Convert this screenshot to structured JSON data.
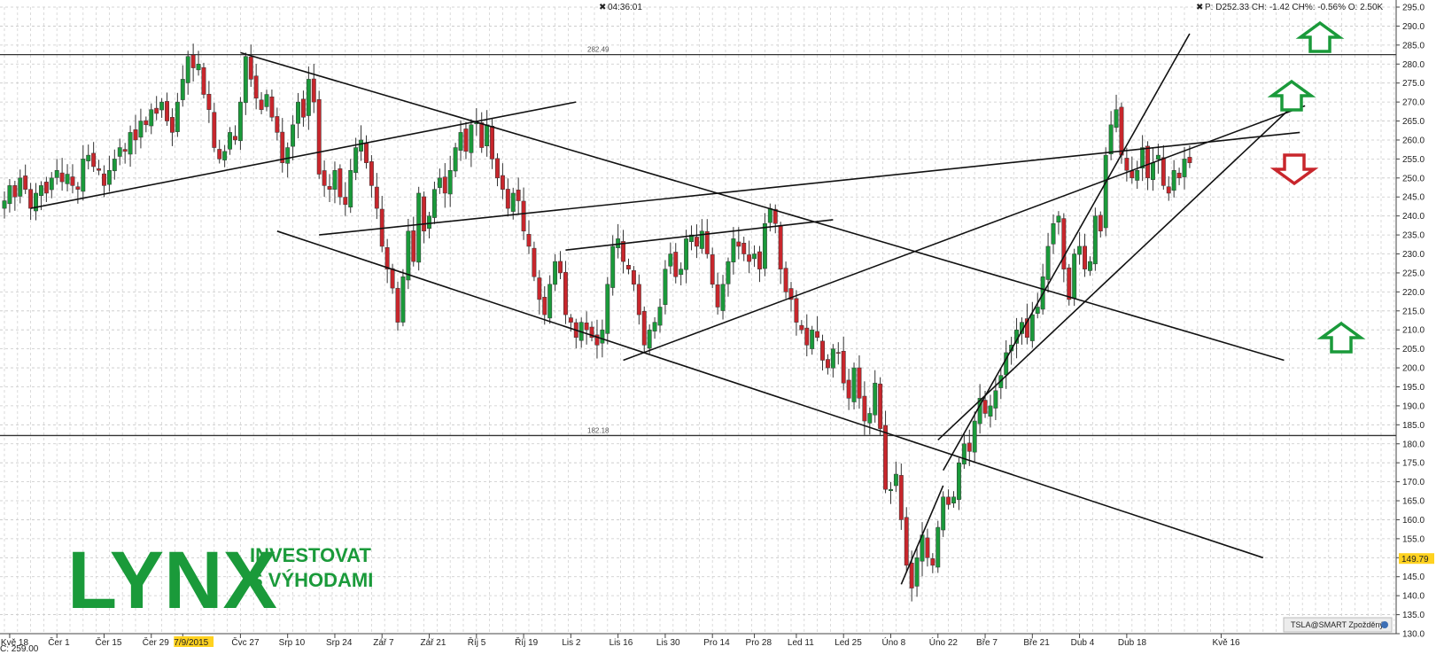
{
  "header": {
    "clock": "04:36:01",
    "quote": "P: D252.33 CH: -1.42 CH%: -0.56% O: 2.50K"
  },
  "footer": {
    "left_label": "C: 259.00",
    "badge": "TSLA@SMART Zpožděný"
  },
  "logo": {
    "name": "LYNX",
    "line1": "INVESTOVAT",
    "line2": "S VÝHODAMI"
  },
  "colors": {
    "up": "#1a9a3a",
    "down": "#c8262c",
    "price_tag": "#ffd21f"
  },
  "chart_data": {
    "type": "candlestick",
    "y_range": [
      130,
      295
    ],
    "y_ticks": [
      130,
      135,
      140,
      145,
      150,
      155,
      160,
      165,
      170,
      175,
      180,
      185,
      190,
      195,
      200,
      205,
      210,
      215,
      220,
      225,
      230,
      235,
      240,
      245,
      250,
      255,
      260,
      265,
      270,
      275,
      280,
      285,
      290,
      295
    ],
    "x_ticks": [
      {
        "label": "Kvě 18",
        "bar": 1
      },
      {
        "label": "Čer 1",
        "bar": 10
      },
      {
        "label": "Čer 15",
        "bar": 19
      },
      {
        "label": "Čer 29",
        "bar": 28
      },
      {
        "label": "7/9/2015",
        "bar": 34,
        "highlight": true
      },
      {
        "label": "Čvc 27",
        "bar": 45
      },
      {
        "label": "Srp 10",
        "bar": 54
      },
      {
        "label": "Srp 24",
        "bar": 63
      },
      {
        "label": "Zář 7",
        "bar": 72
      },
      {
        "label": "Zář 21",
        "bar": 81
      },
      {
        "label": "Říj 5",
        "bar": 90
      },
      {
        "label": "Říj 19",
        "bar": 99
      },
      {
        "label": "Lis 2",
        "bar": 108
      },
      {
        "label": "Lis 16",
        "bar": 117
      },
      {
        "label": "Lis 30",
        "bar": 126
      },
      {
        "label": "Pro 14",
        "bar": 135
      },
      {
        "label": "Pro 28",
        "bar": 143
      },
      {
        "label": "Led 11",
        "bar": 151
      },
      {
        "label": "Led 25",
        "bar": 160
      },
      {
        "label": "Úno 8",
        "bar": 169
      },
      {
        "label": "Úno 22",
        "bar": 178
      },
      {
        "label": "Bře 7",
        "bar": 187
      },
      {
        "label": "Bře 21",
        "bar": 196
      },
      {
        "label": "Dub 4",
        "bar": 205
      },
      {
        "label": "Dub 18",
        "bar": 214
      },
      {
        "label": "Kvě 16",
        "bar": 232
      }
    ],
    "horizontal_levels": [
      {
        "value": 282.49,
        "label": "282.49"
      },
      {
        "value": 182.18,
        "label": "182.18"
      }
    ],
    "last_price_tag": {
      "value": 149.79,
      "label": "149.79"
    },
    "closes": [
      244,
      248,
      245,
      250,
      247,
      242,
      246,
      248,
      246,
      250,
      252,
      249,
      251,
      248,
      247,
      255,
      256,
      253,
      252,
      248,
      252,
      255,
      258,
      257,
      262,
      260,
      265,
      264,
      268,
      267,
      270,
      265,
      262,
      270,
      276,
      282,
      279,
      280,
      272,
      268,
      258,
      255,
      257,
      262,
      260,
      270,
      282,
      276,
      271,
      268,
      272,
      266,
      262,
      254,
      258,
      264,
      270,
      266,
      276,
      270,
      251,
      248,
      247,
      252,
      245,
      243,
      252,
      258,
      260,
      254,
      248,
      242,
      232,
      226,
      221,
      212,
      224,
      236,
      228,
      246,
      236,
      240,
      247,
      250,
      246,
      252,
      258,
      262,
      257,
      264,
      265,
      258,
      264,
      255,
      250,
      247,
      242,
      246,
      244,
      236,
      232,
      224,
      218,
      214,
      222,
      228,
      225,
      214,
      212,
      208,
      212,
      210,
      208,
      206,
      210,
      222,
      232,
      234,
      228,
      226,
      222,
      214,
      206,
      210,
      212,
      216,
      226,
      230,
      224,
      226,
      234,
      235,
      232,
      236,
      230,
      222,
      216,
      222,
      228,
      234,
      232,
      230,
      228,
      230,
      226,
      238,
      242,
      238,
      226,
      220,
      218,
      212,
      210,
      206,
      210,
      208,
      202,
      200,
      205,
      204,
      196,
      192,
      200,
      192,
      186,
      188,
      196,
      184,
      168,
      168,
      172,
      160,
      148,
      142,
      150,
      156,
      150,
      148,
      158,
      166,
      164,
      166,
      175,
      180,
      178,
      186,
      192,
      188,
      190,
      194,
      198,
      204,
      206,
      210,
      212,
      208,
      214,
      216,
      224,
      232,
      238,
      240,
      226,
      218,
      230,
      232,
      226,
      228,
      240,
      236,
      256,
      264,
      268,
      256,
      252,
      250,
      252,
      258,
      250,
      254,
      256,
      248,
      246,
      252,
      250,
      255,
      254
    ]
  }
}
